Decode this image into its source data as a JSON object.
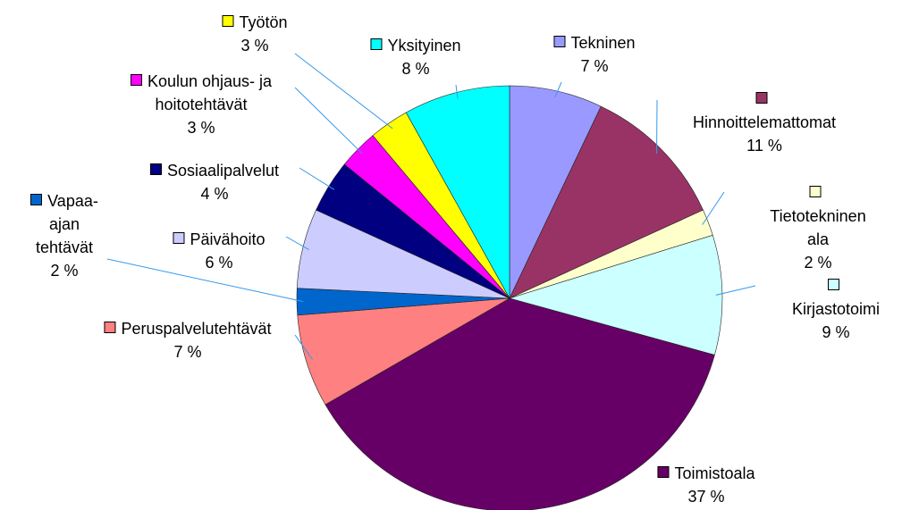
{
  "chart_data": {
    "type": "pie",
    "categories": [
      "Tekninen",
      "Hinnoittelemattomat",
      "Tietotekninen ala",
      "Kirjastotoimi",
      "Toimistoala",
      "Peruspalvelutehtävät",
      "Vapaa-ajan tehtävät",
      "Päivähoito",
      "Sosiaalipalvelut",
      "Koulun ohjaus- ja hoitotehtävät",
      "Työtön",
      "Yksityinen"
    ],
    "values": [
      7,
      11,
      2,
      9,
      37,
      7,
      2,
      6,
      4,
      3,
      3,
      8
    ],
    "value_labels": [
      "7 %",
      "11 %",
      "2 %",
      "9 %",
      "37 %",
      "7 %",
      "2 %",
      "6 %",
      "4 %",
      "3 %",
      "3 %",
      "8 %"
    ],
    "colors": [
      "#9999ff",
      "#993366",
      "#ffffcc",
      "#ccffff",
      "#660066",
      "#ff8080",
      "#0066cc",
      "#ccccff",
      "#000080",
      "#ff00ff",
      "#ffff00",
      "#00ffff"
    ]
  }
}
